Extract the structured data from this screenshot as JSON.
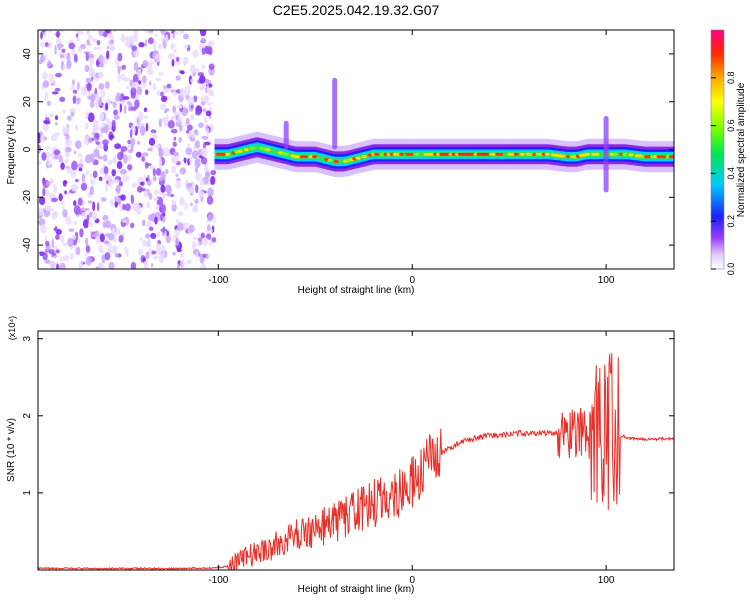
{
  "figure": {
    "title": "C2E5.2025.042.19.32.G07"
  },
  "chart_data": [
    {
      "type": "heatmap",
      "xlabel": "Height of straight line (km)",
      "ylabel": "Frequency (Hz)",
      "xlim": [
        -193,
        135
      ],
      "ylim": [
        -50,
        50
      ],
      "x_ticks": [
        -100,
        0,
        100
      ],
      "y_ticks": [
        -40,
        -20,
        0,
        20,
        40
      ],
      "colorbar": {
        "label": "Normalized spectral amplitude",
        "range": [
          0,
          1
        ],
        "ticks": [
          0.0,
          0.2,
          0.4,
          0.6,
          0.8
        ]
      },
      "noise_region_x": [
        -193,
        -102
      ],
      "ridge": {
        "x": [
          -102,
          -95,
          -90,
          -85,
          -80,
          -75,
          -70,
          -65,
          -60,
          -55,
          -50,
          -45,
          -40,
          -35,
          -30,
          -25,
          -20,
          -15,
          -10,
          -5,
          0,
          5,
          10,
          20,
          30,
          40,
          50,
          60,
          70,
          80,
          85,
          90,
          95,
          100,
          105,
          110,
          120,
          135
        ],
        "freq": [
          -2,
          -2,
          -1,
          0,
          1,
          0,
          -1,
          -2,
          -3,
          -3,
          -3,
          -4,
          -5,
          -5,
          -4,
          -3,
          -2,
          -2,
          -2,
          -2,
          -2,
          -2,
          -2,
          -2,
          -2,
          -2,
          -2,
          -2,
          -2,
          -3,
          -3,
          -2,
          -2,
          -2,
          -2,
          -2,
          -3,
          -3
        ]
      },
      "spikes": [
        {
          "x": 100,
          "freq_range": [
            -18,
            14
          ]
        },
        {
          "x": -65,
          "freq_range": [
            0,
            12
          ]
        },
        {
          "x": -40,
          "freq_range": [
            0,
            30
          ]
        }
      ]
    },
    {
      "type": "line",
      "xlabel": "Height of straight line (km)",
      "ylabel": "SNR (10 * v/v)",
      "y_multiplier": "(x10⁴)",
      "xlim": [
        -193,
        135
      ],
      "ylim": [
        0,
        3.1
      ],
      "x_ticks": [
        -100,
        0,
        100
      ],
      "y_ticks": [
        1,
        2,
        3
      ],
      "series": [
        {
          "color": "#e8302a",
          "x": [
            -193,
            -150,
            -120,
            -100,
            -95,
            -90,
            -85,
            -80,
            -75,
            -70,
            -65,
            -60,
            -55,
            -50,
            -45,
            -40,
            -35,
            -30,
            -25,
            -20,
            -15,
            -10,
            -5,
            0,
            5,
            8,
            10,
            15,
            20,
            25,
            30,
            40,
            50,
            60,
            70,
            75,
            80,
            85,
            90,
            95,
            98,
            100,
            103,
            105,
            108,
            110,
            115,
            120,
            135
          ],
          "y": [
            0.02,
            0.02,
            0.02,
            0.03,
            0.05,
            0.12,
            0.18,
            0.22,
            0.28,
            0.32,
            0.38,
            0.45,
            0.5,
            0.52,
            0.58,
            0.62,
            0.68,
            0.74,
            0.8,
            0.86,
            0.92,
            0.98,
            1.05,
            1.12,
            1.25,
            1.5,
            1.35,
            1.5,
            1.6,
            1.65,
            1.7,
            1.74,
            1.76,
            1.78,
            1.77,
            1.78,
            1.76,
            1.8,
            1.75,
            1.72,
            1.5,
            1.6,
            2.0,
            1.7,
            1.75,
            1.72,
            1.7,
            1.7,
            1.7
          ]
        }
      ]
    }
  ]
}
